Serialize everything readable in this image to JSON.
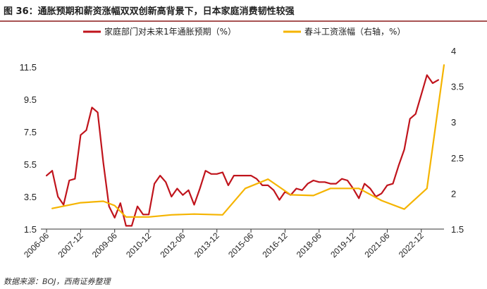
{
  "figure": {
    "title": "图 36：通胀预期和薪资涨幅双双创新高背景下，日本家庭消费韧性较强",
    "source": "数据来源：BOJ，西南证券整理",
    "colors": {
      "title_rule": "#8b1a1a",
      "series_left": "#c0141c",
      "series_right": "#f5b400",
      "axis": "#333333"
    }
  },
  "chart_data": {
    "type": "line",
    "x_tick_labels": [
      "2006-06",
      "2007-12",
      "2009-06",
      "2010-12",
      "2012-06",
      "2013-12",
      "2015-06",
      "2016-12",
      "2018-06",
      "2019-12",
      "2021-06",
      "2022-12"
    ],
    "xlim": [
      "2006-03",
      "2023-12"
    ],
    "y_left": {
      "ticks": [
        "1.5",
        "3.5",
        "5.5",
        "7.5",
        "9.5",
        "11.5"
      ],
      "ylim": [
        1.5,
        12.5
      ]
    },
    "y_right": {
      "ticks": [
        "1.5",
        "2",
        "2.5",
        "3",
        "3.5",
        "4"
      ],
      "ylim": [
        1.5,
        4
      ]
    },
    "grid": false,
    "legend_position": "top",
    "series": [
      {
        "name": "家庭部门对未来1年通胀预期（%）",
        "axis": "left",
        "color": "#c0141c",
        "points": [
          [
            "2006-06",
            4.8
          ],
          [
            "2006-09",
            5.1
          ],
          [
            "2006-12",
            3.5
          ],
          [
            "2007-03",
            3.0
          ],
          [
            "2007-06",
            4.5
          ],
          [
            "2007-09",
            4.6
          ],
          [
            "2007-12",
            7.3
          ],
          [
            "2008-03",
            7.6
          ],
          [
            "2008-06",
            9.0
          ],
          [
            "2008-09",
            8.7
          ],
          [
            "2008-12",
            5.6
          ],
          [
            "2009-03",
            2.9
          ],
          [
            "2009-06",
            2.2
          ],
          [
            "2009-09",
            3.1
          ],
          [
            "2009-12",
            1.7
          ],
          [
            "2010-03",
            1.7
          ],
          [
            "2010-06",
            2.9
          ],
          [
            "2010-09",
            2.4
          ],
          [
            "2010-12",
            2.4
          ],
          [
            "2011-03",
            4.3
          ],
          [
            "2011-06",
            4.8
          ],
          [
            "2011-09",
            4.4
          ],
          [
            "2011-12",
            3.5
          ],
          [
            "2012-03",
            4.0
          ],
          [
            "2012-06",
            3.6
          ],
          [
            "2012-09",
            3.9
          ],
          [
            "2012-12",
            3.0
          ],
          [
            "2013-03",
            4.0
          ],
          [
            "2013-06",
            5.1
          ],
          [
            "2013-09",
            4.9
          ],
          [
            "2013-12",
            4.9
          ],
          [
            "2014-03",
            5.0
          ],
          [
            "2014-06",
            4.2
          ],
          [
            "2014-09",
            4.8
          ],
          [
            "2014-12",
            4.8
          ],
          [
            "2015-03",
            4.8
          ],
          [
            "2015-06",
            4.8
          ],
          [
            "2015-09",
            4.6
          ],
          [
            "2015-12",
            4.2
          ],
          [
            "2016-03",
            4.2
          ],
          [
            "2016-06",
            3.9
          ],
          [
            "2016-09",
            3.3
          ],
          [
            "2016-12",
            3.8
          ],
          [
            "2017-03",
            3.6
          ],
          [
            "2017-06",
            4.0
          ],
          [
            "2017-09",
            3.9
          ],
          [
            "2017-12",
            4.3
          ],
          [
            "2018-03",
            4.5
          ],
          [
            "2018-06",
            4.4
          ],
          [
            "2018-09",
            4.4
          ],
          [
            "2018-12",
            4.3
          ],
          [
            "2019-03",
            4.3
          ],
          [
            "2019-06",
            4.6
          ],
          [
            "2019-09",
            4.5
          ],
          [
            "2019-12",
            4.0
          ],
          [
            "2020-03",
            3.4
          ],
          [
            "2020-06",
            4.3
          ],
          [
            "2020-09",
            4.0
          ],
          [
            "2020-12",
            3.5
          ],
          [
            "2021-03",
            3.7
          ],
          [
            "2021-06",
            4.2
          ],
          [
            "2021-09",
            4.3
          ],
          [
            "2021-12",
            5.4
          ],
          [
            "2022-03",
            6.4
          ],
          [
            "2022-06",
            8.3
          ],
          [
            "2022-09",
            8.6
          ],
          [
            "2022-12",
            9.8
          ],
          [
            "2023-03",
            11.0
          ],
          [
            "2023-06",
            10.5
          ],
          [
            "2023-09",
            10.7
          ]
        ]
      },
      {
        "name": "春斗工资涨幅（右轴，%）",
        "axis": "right",
        "color": "#f5b400",
        "points": [
          [
            "2006-09",
            1.79
          ],
          [
            "2007-12",
            1.87
          ],
          [
            "2008-12",
            1.89
          ],
          [
            "2009-06",
            1.83
          ],
          [
            "2009-12",
            1.67
          ],
          [
            "2010-12",
            1.67
          ],
          [
            "2011-12",
            1.7
          ],
          [
            "2012-12",
            1.71
          ],
          [
            "2014-03",
            1.7
          ],
          [
            "2015-03",
            2.07
          ],
          [
            "2016-03",
            2.2
          ],
          [
            "2017-03",
            1.98
          ],
          [
            "2018-03",
            1.97
          ],
          [
            "2018-12",
            2.07
          ],
          [
            "2020-03",
            2.07
          ],
          [
            "2021-03",
            1.9
          ],
          [
            "2022-03",
            1.78
          ],
          [
            "2023-03",
            2.07
          ],
          [
            "2023-12",
            3.8
          ]
        ]
      }
    ]
  }
}
